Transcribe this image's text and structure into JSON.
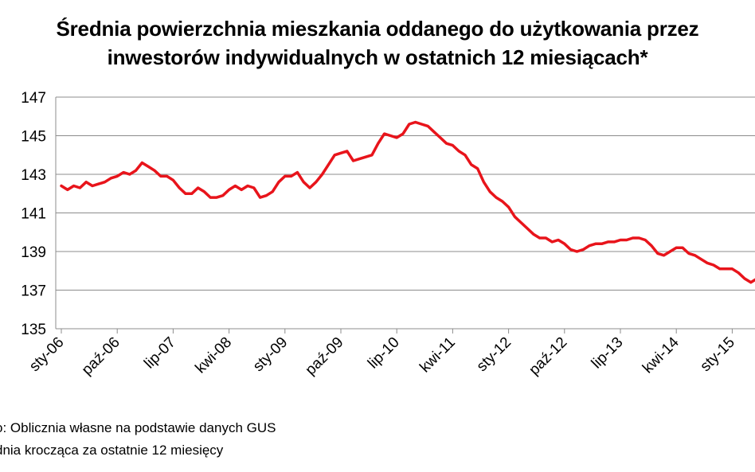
{
  "chart_data": {
    "type": "line",
    "title_lines": [
      "Średnia powierzchnia mieszkania oddanego do użytkowania przez",
      "inwestorów indywidualnych w ostatnich 12 miesiącach*"
    ],
    "ylim": [
      135,
      147
    ],
    "yticks": [
      "135",
      "137",
      "139",
      "141",
      "143",
      "145",
      "147"
    ],
    "xtick_labels": [
      "sty-06",
      "paź-06",
      "lip-07",
      "kwi-08",
      "sty-09",
      "paź-09",
      "lip-10",
      "kwi-11",
      "sty-12",
      "paź-12",
      "lip-13",
      "kwi-14",
      "sty-15"
    ],
    "grid": true,
    "line_color": "#e8141b",
    "series": [
      {
        "values": [
          142.4,
          142.2,
          142.4,
          142.3,
          142.6,
          142.4,
          142.5,
          142.6,
          142.8,
          142.9,
          143.1,
          143.0,
          143.2,
          143.6,
          143.4,
          143.2,
          142.9,
          142.9,
          142.7,
          142.3,
          142.0,
          142.0,
          142.3,
          142.1,
          141.8,
          141.8,
          141.9,
          142.2,
          142.4,
          142.2,
          142.4,
          142.3,
          141.8,
          141.9,
          142.1,
          142.6,
          142.9,
          142.9,
          143.1,
          142.6,
          142.3,
          142.6,
          143.0,
          143.5,
          144.0,
          144.1,
          144.2,
          143.7,
          143.8,
          143.9,
          144.0,
          144.6,
          145.1,
          145.0,
          144.9,
          145.1,
          145.6,
          145.7,
          145.6,
          145.5,
          145.2,
          144.9,
          144.6,
          144.5,
          144.2,
          144.0,
          143.5,
          143.3,
          142.6,
          142.1,
          141.8,
          141.6,
          141.3,
          140.8,
          140.5,
          140.2,
          139.9,
          139.7,
          139.7,
          139.5,
          139.6,
          139.4,
          139.1,
          139.0,
          139.1,
          139.3,
          139.4,
          139.4,
          139.5,
          139.5,
          139.6,
          139.6,
          139.7,
          139.7,
          139.6,
          139.3,
          138.9,
          138.8,
          139.0,
          139.2,
          139.2,
          138.9,
          138.8,
          138.6,
          138.4,
          138.3,
          138.1,
          138.1,
          138.1,
          137.9,
          137.6,
          137.4,
          137.6
        ]
      }
    ]
  },
  "notes": {
    "source": "o:  Oblicznia własne na podstawie danych GUS",
    "footnote": "dnia krocząca za ostatnie 12 miesięcy"
  }
}
